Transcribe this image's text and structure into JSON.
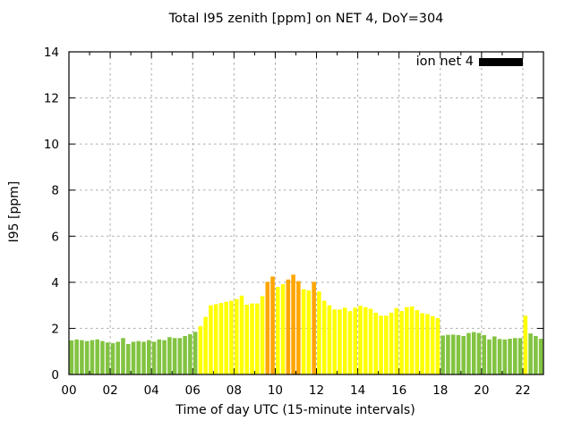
{
  "window": {
    "background": "#ffffff"
  },
  "chart_data": {
    "type": "bar",
    "title": "Total I95 zenith [ppm] on NET 4, DoY=304",
    "xlabel": "Time of day UTC (15-minute intervals)",
    "ylabel": "I95 [ppm]",
    "legend": {
      "label": "ion net 4",
      "swatch_color": "#000000",
      "position": "top-right-inside"
    },
    "interval_minutes": 15,
    "x_unit": "hours UTC",
    "xlim": [
      0,
      23
    ],
    "ylim": [
      0,
      14
    ],
    "x_major_tick_hours": [
      0,
      2,
      4,
      6,
      8,
      10,
      12,
      14,
      16,
      18,
      20,
      22
    ],
    "x_major_tick_labels": [
      "00",
      "02",
      "04",
      "06",
      "08",
      "10",
      "12",
      "14",
      "16",
      "18",
      "20",
      "22"
    ],
    "x_minor_tick_hours": [
      1,
      3,
      5,
      7,
      9,
      11,
      13,
      15,
      17,
      19,
      21
    ],
    "y_tick_values": [
      0,
      2,
      4,
      6,
      8,
      10,
      12,
      14
    ],
    "y_tick_labels": [
      "0",
      "2",
      "4",
      "6",
      "8",
      "10",
      "12",
      "14"
    ],
    "grid": {
      "show": true,
      "color": "#aaaaaa",
      "style": "dashed"
    },
    "bar_colors": {
      "low": "#82C341",
      "mid": "#FFFF00",
      "high": "#FFA500"
    },
    "color_thresholds": {
      "mid_min": 2.0,
      "high_min": 4.0
    },
    "series": [
      {
        "name": "ion net 4",
        "start_hour": 0,
        "values": [
          1.48,
          1.52,
          1.49,
          1.45,
          1.49,
          1.52,
          1.45,
          1.39,
          1.36,
          1.42,
          1.58,
          1.32,
          1.42,
          1.45,
          1.42,
          1.49,
          1.42,
          1.52,
          1.49,
          1.62,
          1.58,
          1.58,
          1.67,
          1.75,
          1.85,
          2.1,
          2.5,
          3.0,
          3.05,
          3.1,
          3.15,
          3.2,
          3.27,
          3.42,
          3.03,
          3.08,
          3.08,
          3.4,
          4.02,
          4.25,
          3.8,
          3.92,
          4.12,
          4.33,
          4.05,
          3.7,
          3.65,
          4.02,
          3.6,
          3.2,
          3.0,
          2.82,
          2.82,
          2.9,
          2.75,
          2.9,
          2.98,
          2.92,
          2.85,
          2.68,
          2.55,
          2.55,
          2.68,
          2.88,
          2.75,
          2.92,
          2.95,
          2.79,
          2.66,
          2.62,
          2.53,
          2.45,
          1.69,
          1.72,
          1.73,
          1.71,
          1.67,
          1.8,
          1.84,
          1.8,
          1.71,
          1.52,
          1.65,
          1.54,
          1.52,
          1.55,
          1.58,
          1.58,
          2.55,
          1.78,
          1.67,
          1.55
        ]
      }
    ]
  }
}
